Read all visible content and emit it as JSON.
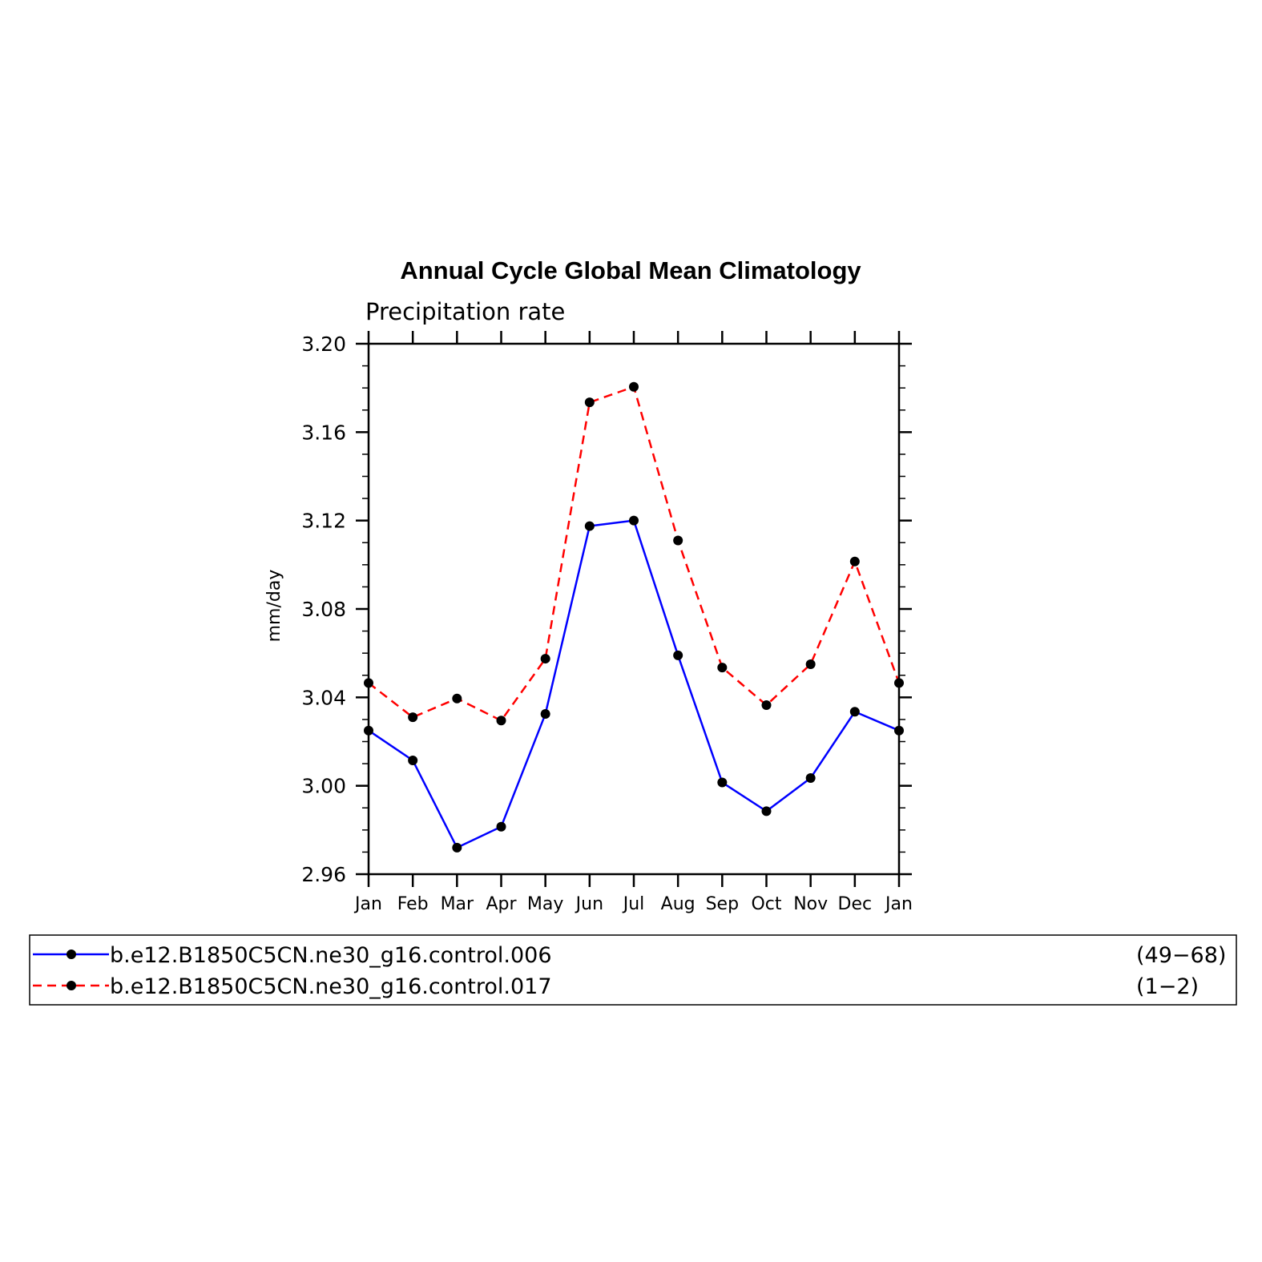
{
  "chart_data": {
    "type": "line",
    "title": "Annual Cycle Global Mean Climatology",
    "subtitle": "Precipitation rate",
    "ylabel": "mm/day",
    "xlabel": "",
    "categories": [
      "Jan",
      "Feb",
      "Mar",
      "Apr",
      "May",
      "Jun",
      "Jul",
      "Aug",
      "Sep",
      "Oct",
      "Nov",
      "Dec",
      "Jan"
    ],
    "ylim": [
      2.96,
      3.2
    ],
    "yticks": [
      "2.96",
      "3.00",
      "3.04",
      "3.08",
      "3.12",
      "3.16",
      "3.20"
    ],
    "series": [
      {
        "name": "b.e12.B1850C5CN.ne30_g16.control.006",
        "years": "(49−68)",
        "color": "#0000ff",
        "dash": "solid",
        "values": [
          3.025,
          3.0115,
          2.972,
          2.9815,
          3.0325,
          3.1175,
          3.12,
          3.059,
          3.0015,
          2.9885,
          3.0035,
          3.0335,
          3.025
        ]
      },
      {
        "name": "b.e12.B1850C5CN.ne30_g16.control.017",
        "years": "(1−2)",
        "color": "#ff0000",
        "dash": "dashed",
        "values": [
          3.0465,
          3.031,
          3.0395,
          3.0295,
          3.0575,
          3.1735,
          3.1805,
          3.111,
          3.0535,
          3.0365,
          3.055,
          3.1015,
          3.0465
        ]
      }
    ],
    "marker_color": "#000000",
    "legend_position": "bottom"
  }
}
